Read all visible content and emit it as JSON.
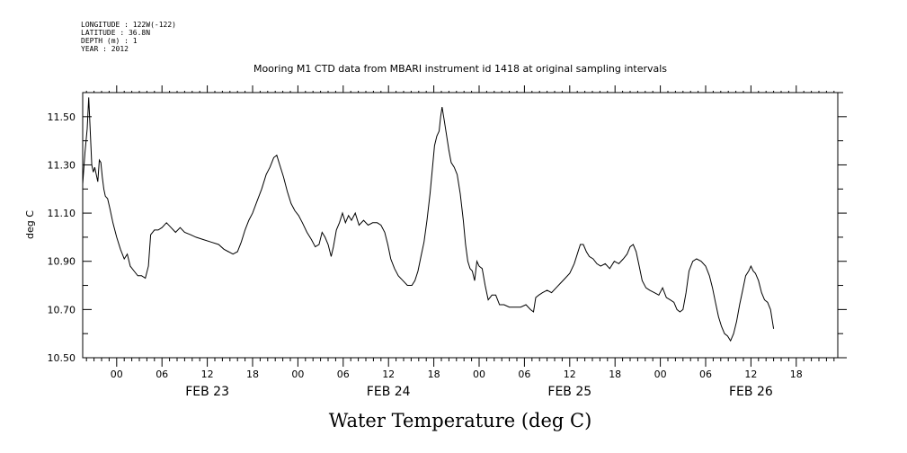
{
  "header": {
    "longitude": "LONGITUDE : 122W(-122)",
    "latitude": "LATITUDE : 36.8N",
    "depth": "DEPTH (m) : 1",
    "year": "YEAR : 2012"
  },
  "chart_data": {
    "type": "line",
    "title": "Mooring M1 CTD data from MBARI instrument id 1418 at original sampling intervals",
    "xlabel": "Water Temperature (deg C)",
    "ylabel": "deg C",
    "ylim": [
      10.5,
      11.6
    ],
    "xlim_hours": [
      -4.5,
      95.5
    ],
    "y_ticks": [
      "10.50",
      "10.70",
      "10.90",
      "11.10",
      "11.30",
      "11.50"
    ],
    "x_tick_labels": [
      "00",
      "06",
      "12",
      "18",
      "00",
      "06",
      "12",
      "18",
      "00",
      "06",
      "12",
      "18",
      "00",
      "06",
      "12",
      "18"
    ],
    "day_labels": [
      "FEB 23",
      "FEB 24",
      "FEB 25",
      "FEB 26"
    ],
    "grid": false,
    "series": [
      {
        "values": [
          [
            -4.5,
            11.22
          ],
          [
            -4.2,
            11.35
          ],
          [
            -3.9,
            11.45
          ],
          [
            -3.7,
            11.58
          ],
          [
            -3.5,
            11.44
          ],
          [
            -3.3,
            11.3
          ],
          [
            -3.1,
            11.27
          ],
          [
            -2.9,
            11.29
          ],
          [
            -2.7,
            11.26
          ],
          [
            -2.5,
            11.23
          ],
          [
            -2.3,
            11.32
          ],
          [
            -2.1,
            11.31
          ],
          [
            -1.9,
            11.25
          ],
          [
            -1.7,
            11.2
          ],
          [
            -1.5,
            11.17
          ],
          [
            -1.2,
            11.16
          ],
          [
            -0.9,
            11.12
          ],
          [
            -0.5,
            11.06
          ],
          [
            0.0,
            11.0
          ],
          [
            0.5,
            10.95
          ],
          [
            1.0,
            10.91
          ],
          [
            1.4,
            10.93
          ],
          [
            1.8,
            10.88
          ],
          [
            2.3,
            10.86
          ],
          [
            2.8,
            10.84
          ],
          [
            3.3,
            10.84
          ],
          [
            3.8,
            10.83
          ],
          [
            4.2,
            10.88
          ],
          [
            4.5,
            11.01
          ],
          [
            5.0,
            11.03
          ],
          [
            5.5,
            11.03
          ],
          [
            6.0,
            11.04
          ],
          [
            6.6,
            11.06
          ],
          [
            7.2,
            11.04
          ],
          [
            7.8,
            11.02
          ],
          [
            8.4,
            11.04
          ],
          [
            9.0,
            11.02
          ],
          [
            9.8,
            11.01
          ],
          [
            10.5,
            11.0
          ],
          [
            11.5,
            10.99
          ],
          [
            12.5,
            10.98
          ],
          [
            13.5,
            10.97
          ],
          [
            14.2,
            10.95
          ],
          [
            14.8,
            10.94
          ],
          [
            15.4,
            10.93
          ],
          [
            16.0,
            10.94
          ],
          [
            16.5,
            10.98
          ],
          [
            17.0,
            11.03
          ],
          [
            17.5,
            11.07
          ],
          [
            18.0,
            11.1
          ],
          [
            18.6,
            11.15
          ],
          [
            19.2,
            11.2
          ],
          [
            19.8,
            11.26
          ],
          [
            20.3,
            11.29
          ],
          [
            20.8,
            11.33
          ],
          [
            21.2,
            11.34
          ],
          [
            21.6,
            11.3
          ],
          [
            22.1,
            11.25
          ],
          [
            22.6,
            11.19
          ],
          [
            23.1,
            11.14
          ],
          [
            23.6,
            11.11
          ],
          [
            24.1,
            11.09
          ],
          [
            24.6,
            11.06
          ],
          [
            25.2,
            11.02
          ],
          [
            25.8,
            10.99
          ],
          [
            26.3,
            10.96
          ],
          [
            26.8,
            10.97
          ],
          [
            27.2,
            11.02
          ],
          [
            27.6,
            11.0
          ],
          [
            28.0,
            10.97
          ],
          [
            28.4,
            10.92
          ],
          [
            28.7,
            10.96
          ],
          [
            29.1,
            11.03
          ],
          [
            29.5,
            11.06
          ],
          [
            29.9,
            11.1
          ],
          [
            30.3,
            11.06
          ],
          [
            30.7,
            11.09
          ],
          [
            31.1,
            11.07
          ],
          [
            31.6,
            11.1
          ],
          [
            32.1,
            11.05
          ],
          [
            32.7,
            11.07
          ],
          [
            33.3,
            11.05
          ],
          [
            33.9,
            11.06
          ],
          [
            34.5,
            11.06
          ],
          [
            35.0,
            11.05
          ],
          [
            35.5,
            11.02
          ],
          [
            35.9,
            10.97
          ],
          [
            36.3,
            10.91
          ],
          [
            36.8,
            10.87
          ],
          [
            37.3,
            10.84
          ],
          [
            37.9,
            10.82
          ],
          [
            38.5,
            10.8
          ],
          [
            39.1,
            10.8
          ],
          [
            39.5,
            10.82
          ],
          [
            39.9,
            10.86
          ],
          [
            40.3,
            10.92
          ],
          [
            40.7,
            10.98
          ],
          [
            41.1,
            11.07
          ],
          [
            41.5,
            11.18
          ],
          [
            41.8,
            11.28
          ],
          [
            42.1,
            11.38
          ],
          [
            42.4,
            11.42
          ],
          [
            42.7,
            11.44
          ],
          [
            42.9,
            11.5
          ],
          [
            43.1,
            11.54
          ],
          [
            43.4,
            11.48
          ],
          [
            43.7,
            11.42
          ],
          [
            44.0,
            11.36
          ],
          [
            44.3,
            11.31
          ],
          [
            44.7,
            11.29
          ],
          [
            45.1,
            11.26
          ],
          [
            45.5,
            11.18
          ],
          [
            45.9,
            11.07
          ],
          [
            46.2,
            10.97
          ],
          [
            46.5,
            10.9
          ],
          [
            46.8,
            10.87
          ],
          [
            47.1,
            10.86
          ],
          [
            47.4,
            10.82
          ],
          [
            47.7,
            10.9
          ],
          [
            48.0,
            10.88
          ],
          [
            48.4,
            10.87
          ],
          [
            48.8,
            10.8
          ],
          [
            49.2,
            10.74
          ],
          [
            49.7,
            10.76
          ],
          [
            50.2,
            10.76
          ],
          [
            50.7,
            10.72
          ],
          [
            51.3,
            10.72
          ],
          [
            52.0,
            10.71
          ],
          [
            52.8,
            10.71
          ],
          [
            53.5,
            10.71
          ],
          [
            54.2,
            10.72
          ],
          [
            54.8,
            10.7
          ],
          [
            55.2,
            10.69
          ],
          [
            55.5,
            10.75
          ],
          [
            55.9,
            10.76
          ],
          [
            56.4,
            10.77
          ],
          [
            57.0,
            10.78
          ],
          [
            57.6,
            10.77
          ],
          [
            58.2,
            10.79
          ],
          [
            58.8,
            10.81
          ],
          [
            59.4,
            10.83
          ],
          [
            60.0,
            10.85
          ],
          [
            60.6,
            10.89
          ],
          [
            61.0,
            10.93
          ],
          [
            61.4,
            10.97
          ],
          [
            61.8,
            10.97
          ],
          [
            62.2,
            10.94
          ],
          [
            62.6,
            10.92
          ],
          [
            63.1,
            10.91
          ],
          [
            63.6,
            10.89
          ],
          [
            64.1,
            10.88
          ],
          [
            64.7,
            10.89
          ],
          [
            65.3,
            10.87
          ],
          [
            65.9,
            10.9
          ],
          [
            66.5,
            10.89
          ],
          [
            67.1,
            10.91
          ],
          [
            67.6,
            10.93
          ],
          [
            68.0,
            10.96
          ],
          [
            68.4,
            10.97
          ],
          [
            68.8,
            10.94
          ],
          [
            69.2,
            10.88
          ],
          [
            69.6,
            10.82
          ],
          [
            70.1,
            10.79
          ],
          [
            70.6,
            10.78
          ],
          [
            71.2,
            10.77
          ],
          [
            71.8,
            10.76
          ],
          [
            72.3,
            10.79
          ],
          [
            72.8,
            10.75
          ],
          [
            73.3,
            10.74
          ],
          [
            73.8,
            10.73
          ],
          [
            74.2,
            10.7
          ],
          [
            74.6,
            10.69
          ],
          [
            75.0,
            10.7
          ],
          [
            75.4,
            10.77
          ],
          [
            75.8,
            10.86
          ],
          [
            76.3,
            10.9
          ],
          [
            76.8,
            10.91
          ],
          [
            77.4,
            10.9
          ],
          [
            78.0,
            10.88
          ],
          [
            78.5,
            10.84
          ],
          [
            78.9,
            10.79
          ],
          [
            79.3,
            10.73
          ],
          [
            79.7,
            10.67
          ],
          [
            80.1,
            10.63
          ],
          [
            80.5,
            10.6
          ],
          [
            80.9,
            10.59
          ],
          [
            81.3,
            10.57
          ],
          [
            81.7,
            10.6
          ],
          [
            82.1,
            10.65
          ],
          [
            82.5,
            10.72
          ],
          [
            82.9,
            10.78
          ],
          [
            83.3,
            10.84
          ],
          [
            83.7,
            10.86
          ],
          [
            84.0,
            10.88
          ],
          [
            84.3,
            10.86
          ],
          [
            84.6,
            10.85
          ],
          [
            85.0,
            10.82
          ],
          [
            85.4,
            10.77
          ],
          [
            85.8,
            10.74
          ],
          [
            86.2,
            10.73
          ],
          [
            86.6,
            10.7
          ],
          [
            87.0,
            10.62
          ]
        ]
      }
    ]
  }
}
